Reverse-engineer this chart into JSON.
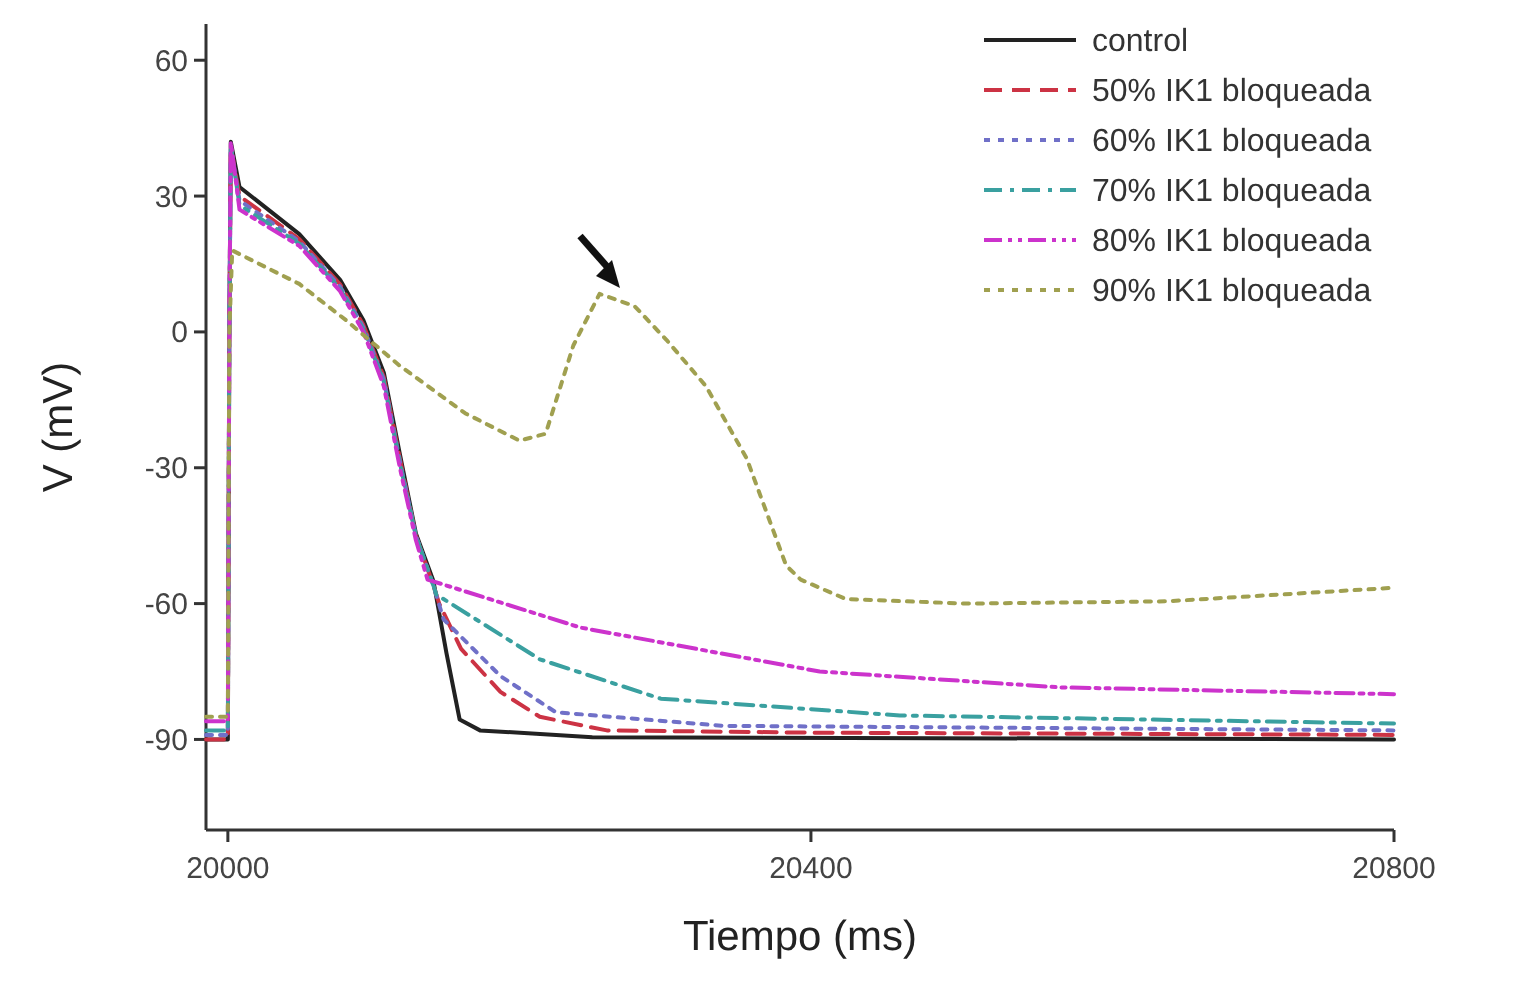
{
  "chart_data": {
    "type": "line",
    "xlabel": "Tiempo (ms)",
    "ylabel": "V (mV)",
    "xlim": [
      19985,
      20800
    ],
    "ylim": [
      -110,
      68
    ],
    "xticks": [
      20000,
      20400,
      20800
    ],
    "yticks": [
      -90,
      -60,
      -30,
      0,
      30,
      60
    ],
    "grid": false,
    "legend": "top right",
    "marker": "none",
    "series": [
      {
        "name": "control",
        "color": "#222222",
        "line_style": "solid",
        "x": [
          19985,
          20000,
          20001,
          20002,
          20008,
          20049,
          20077,
          20093,
          20107,
          20118,
          20129,
          20141,
          20150,
          20159,
          20173,
          20250,
          20800
        ],
        "values": [
          -90,
          -90,
          0,
          42,
          32,
          21.6,
          11.5,
          2.6,
          -9,
          -27,
          -44.5,
          -55,
          -71,
          -85.6,
          -88,
          -89.5,
          -90
        ]
      },
      {
        "name": "50% IK1 bloqueada",
        "color": "#cc3344",
        "line_style": "dashed",
        "x": [
          19985,
          20000,
          20001,
          20002,
          20008,
          20049,
          20077,
          20093,
          20107,
          20118,
          20129,
          20141,
          20145,
          20160,
          20187,
          20214,
          20260,
          20400,
          20800
        ],
        "values": [
          -90,
          -90,
          0,
          41,
          30,
          20.5,
          10.5,
          1.5,
          -10,
          -28,
          -45,
          -56,
          -60,
          -70,
          -79.5,
          -85,
          -88,
          -88.5,
          -89
        ]
      },
      {
        "name": "60% IK1 bloqueada",
        "color": "#7070c8",
        "line_style": "dotted",
        "x": [
          19985,
          20000,
          20001,
          20002,
          20008,
          20049,
          20077,
          20093,
          20107,
          20118,
          20129,
          20141,
          20148,
          20187,
          20225,
          20340,
          20800
        ],
        "values": [
          -89,
          -89,
          0,
          41,
          29,
          20,
          10,
          1,
          -10.5,
          -28.5,
          -45,
          -56,
          -63.5,
          -76,
          -84,
          -87,
          -88
        ]
      },
      {
        "name": "70% IK1 bloqueada",
        "color": "#3aa0a0",
        "line_style": "dashdot",
        "x": [
          19985,
          20000,
          20001,
          20002,
          20008,
          20049,
          20077,
          20093,
          20107,
          20118,
          20129,
          20141,
          20143,
          20214,
          20297,
          20461,
          20800
        ],
        "values": [
          -88,
          -88,
          0,
          41,
          28,
          19.5,
          9.5,
          0.5,
          -11,
          -29,
          -45,
          -56,
          -58,
          -72.3,
          -81,
          -84.7,
          -86.5
        ]
      },
      {
        "name": "80% IK1 bloqueada",
        "color": "#cc33cc",
        "line_style": "dashdotdot",
        "x": [
          19985,
          20000,
          20001,
          20002,
          20008,
          20049,
          20077,
          20093,
          20107,
          20118,
          20129,
          20137,
          20242,
          20406,
          20571,
          20800
        ],
        "values": [
          -86,
          -86,
          0,
          42,
          27,
          19,
          9,
          0,
          -12,
          -30,
          -46,
          -54.7,
          -65.3,
          -75,
          -78.5,
          -80
        ]
      },
      {
        "name": "90% IK1 bloqueada",
        "color": "#a0a050",
        "line_style": "dotted",
        "x": [
          19985,
          20000,
          20001,
          20003,
          20049,
          20081,
          20118,
          20163,
          20200,
          20218,
          20237,
          20255,
          20279,
          20301,
          20328,
          20356,
          20383,
          20393,
          20424,
          20507,
          20644,
          20800
        ],
        "values": [
          -85,
          -85,
          0,
          18,
          10.6,
          2.6,
          -7.5,
          -18,
          -24,
          -22.5,
          -3,
          8.4,
          5.7,
          -1.8,
          -12,
          -28,
          -51.6,
          -54.7,
          -59,
          -60,
          -59.5,
          -56.5
        ]
      }
    ]
  }
}
